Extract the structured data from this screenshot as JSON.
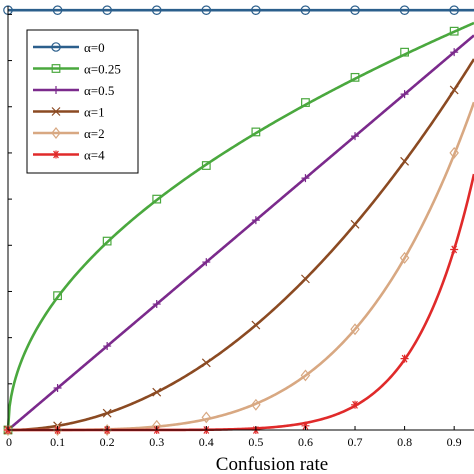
{
  "chart_data": {
    "type": "line",
    "title": "",
    "xlabel": "Confusion rate",
    "ylabel": "",
    "xlim": [
      0,
      0.94
    ],
    "ylim": [
      0,
      1.01
    ],
    "grid": false,
    "legend_position": "top-left",
    "x_ticks": [
      0,
      0.1,
      0.2,
      0.3,
      0.4,
      0.5,
      0.6,
      0.7,
      0.8,
      0.9
    ],
    "x_tick_labels": [
      "0",
      "0.1",
      "0.2",
      "0.3",
      "0.4",
      "0.5",
      "0.6",
      "0.7",
      "0.8",
      "0.9"
    ],
    "series": [
      {
        "name": "α=0",
        "color": "#2b5f8c",
        "marker": "circle",
        "x": [
          0,
          0.1,
          0.2,
          0.3,
          0.4,
          0.5,
          0.6,
          0.7,
          0.8,
          0.9
        ],
        "values": [
          1.0,
          1.0,
          1.0,
          1.0,
          1.0,
          1.0,
          1.0,
          1.0,
          1.0,
          1.0
        ]
      },
      {
        "name": "α=0.25",
        "color": "#4aa83e",
        "marker": "square",
        "x": [
          0,
          0.1,
          0.2,
          0.3,
          0.4,
          0.5,
          0.6,
          0.7,
          0.8,
          0.9
        ],
        "values": [
          0.0,
          0.32,
          0.45,
          0.55,
          0.63,
          0.71,
          0.78,
          0.84,
          0.9,
          0.95
        ]
      },
      {
        "name": "α=0.5",
        "color": "#7b2a8c",
        "marker": "plus",
        "x": [
          0,
          0.1,
          0.2,
          0.3,
          0.4,
          0.5,
          0.6,
          0.7,
          0.8,
          0.9
        ],
        "values": [
          0.0,
          0.1,
          0.2,
          0.3,
          0.4,
          0.5,
          0.6,
          0.7,
          0.8,
          0.9
        ]
      },
      {
        "name": "α=1",
        "color": "#8b4a22",
        "marker": "cross",
        "x": [
          0,
          0.1,
          0.2,
          0.3,
          0.4,
          0.5,
          0.6,
          0.7,
          0.8,
          0.9
        ],
        "values": [
          0.0,
          0.01,
          0.04,
          0.09,
          0.16,
          0.25,
          0.36,
          0.49,
          0.64,
          0.81
        ]
      },
      {
        "name": "α=2",
        "color": "#d8a882",
        "marker": "diamond",
        "x": [
          0,
          0.1,
          0.2,
          0.3,
          0.4,
          0.5,
          0.6,
          0.7,
          0.8,
          0.9
        ],
        "values": [
          0.0,
          0.0,
          0.0,
          0.01,
          0.03,
          0.06,
          0.13,
          0.24,
          0.41,
          0.66
        ]
      },
      {
        "name": "α=4",
        "color": "#e02a2a",
        "marker": "asterisk",
        "x": [
          0,
          0.1,
          0.2,
          0.3,
          0.4,
          0.5,
          0.6,
          0.7,
          0.8,
          0.9
        ],
        "values": [
          0.0,
          0.0,
          0.0,
          0.0,
          0.0,
          0.0,
          0.01,
          0.06,
          0.17,
          0.43
        ]
      }
    ]
  }
}
